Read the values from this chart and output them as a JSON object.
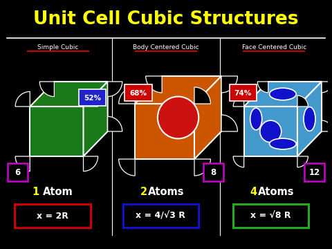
{
  "title": "Unit Cell Cubic Structures",
  "title_color": "#FFFF00",
  "background_color": "#000000",
  "divider_color": "#FFFFFF",
  "subtitle_color": "#FFFFFF",
  "sections": [
    {
      "name": "Simple Cubic",
      "pct": "52%",
      "pct_box_color": "#2222CC",
      "cube_color": "#1A7A1A",
      "center_atom_color": null,
      "face_atom_color": null,
      "atom_count": "1 Atom",
      "atom_count_color": "#FFFF00",
      "formula": "x = 2R",
      "formula_box_color": "#CC0000",
      "corner_label": "6",
      "corner_box_color": "#CC00CC"
    },
    {
      "name": "Body Centered Cubic",
      "pct": "68%",
      "pct_box_color": "#CC0000",
      "cube_color": "#CC5500",
      "center_atom_color": "#CC1111",
      "face_atom_color": null,
      "atom_count": "2 Atoms",
      "atom_count_color": "#FFFF00",
      "formula": "x = 4/√3 R",
      "formula_box_color": "#1111CC",
      "corner_label": "8",
      "corner_box_color": "#CC00CC"
    },
    {
      "name": "Face Centered Cubic",
      "pct": "74%",
      "pct_box_color": "#CC0000",
      "cube_color": "#4499CC",
      "center_atom_color": null,
      "face_atom_color": "#1111CC",
      "atom_count": "4 Atoms",
      "atom_count_color": "#FFFF00",
      "formula": "x = √8 R",
      "formula_box_color": "#22AA22",
      "corner_label": "12",
      "corner_box_color": "#CC00CC"
    }
  ]
}
